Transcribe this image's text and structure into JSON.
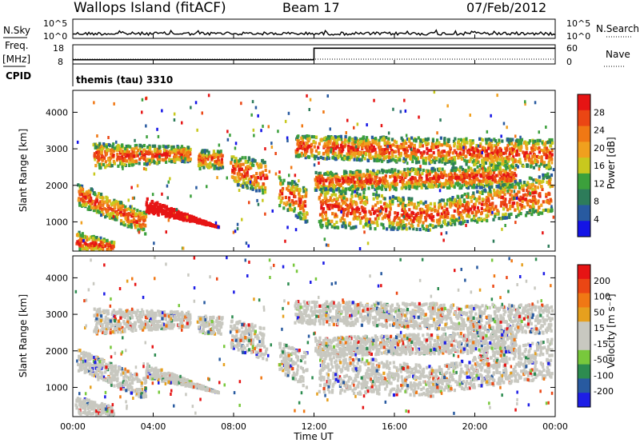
{
  "header": {
    "station": "Wallops Island (fitACF)",
    "beam": "Beam 17",
    "date": "07/Feb/2012"
  },
  "strip": {
    "nsky_label": "N.Sky",
    "nsearch_label": "N.Search",
    "freq_label": "Freq.",
    "freq_unit": "[MHz]",
    "nave_label": "Nave",
    "cpid_label": "CPID",
    "cpid_value": "themis (tau) 3310",
    "noise_ticks": [
      "10^5",
      "10^0"
    ],
    "freq_ticks": [
      "18",
      "8"
    ],
    "nave_ticks": [
      "60",
      "0"
    ]
  },
  "colors": {
    "power": [
      "#1414e6",
      "#285aa0",
      "#2d7c5a",
      "#3ca03c",
      "#c8c81e",
      "#f0a01e",
      "#f07814",
      "#eb4614",
      "#e61414"
    ],
    "velocity": [
      "#1e1ee6",
      "#285aa0",
      "#2d8c50",
      "#78c83c",
      "#c8c8c0",
      "#c8c8c0",
      "#e6a01e",
      "#f07814",
      "#eb4614",
      "#e61414"
    ]
  },
  "chart_data": [
    {
      "type": "line",
      "name": "strip",
      "time_ticks": [
        "00:00",
        "04:00",
        "08:00",
        "12:00",
        "16:00",
        "20:00",
        "00:00"
      ],
      "freq": {
        "x_hours": [
          0,
          12,
          12,
          24
        ],
        "values_mhz": [
          10.2,
          10.2,
          16.2,
          16.2
        ],
        "ylim": [
          8,
          18
        ]
      },
      "nave": {
        "x_hours": [
          0,
          24
        ],
        "values": [
          15,
          15
        ],
        "ylim": [
          0,
          60
        ]
      }
    },
    {
      "type": "heatmap",
      "name": "power",
      "ylabel": "Slant Range [km]",
      "y_ticks": [
        "1000",
        "2000",
        "3000",
        "4000"
      ],
      "ylim": [
        200,
        4600
      ],
      "xlim_hours": [
        0,
        24
      ],
      "colorbar_label": "Power [dB]",
      "colorbar_ticks": [
        "4",
        "8",
        "12",
        "16",
        "20",
        "24",
        "28"
      ]
    },
    {
      "type": "heatmap",
      "name": "velocity",
      "ylabel": "Slant Range [km]",
      "xlabel": "Time UT",
      "y_ticks": [
        "1000",
        "2000",
        "3000",
        "4000"
      ],
      "ylim": [
        200,
        4600
      ],
      "xlim_hours": [
        0,
        24
      ],
      "colorbar_label": "Velocity [m s⁻¹]",
      "colorbar_ticks": [
        "200",
        "100",
        "50",
        "15",
        "-15",
        "-50",
        "-100",
        "-200"
      ],
      "time_ticks": [
        "00:00",
        "04:00",
        "08:00",
        "12:00",
        "16:00",
        "20:00",
        "00:00"
      ]
    }
  ]
}
